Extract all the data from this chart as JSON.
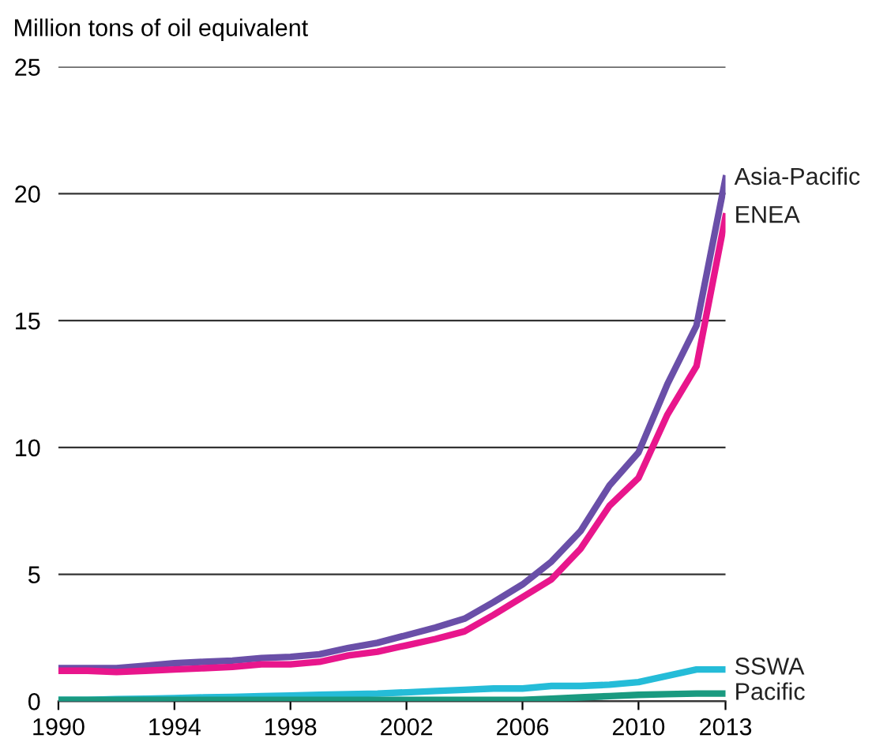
{
  "chart_data": {
    "type": "line",
    "ylabel": "Million tons of oil equivalent",
    "x": [
      1990,
      1991,
      1992,
      1993,
      1994,
      1995,
      1996,
      1997,
      1998,
      1999,
      2000,
      2001,
      2002,
      2003,
      2004,
      2005,
      2006,
      2007,
      2008,
      2009,
      2010,
      2011,
      2012,
      2013
    ],
    "series": [
      {
        "name": "Asia-Pacific",
        "color": "#6a4fa8",
        "values": [
          1.3,
          1.3,
          1.3,
          1.4,
          1.5,
          1.55,
          1.6,
          1.7,
          1.75,
          1.85,
          2.1,
          2.3,
          2.6,
          2.9,
          3.25,
          3.9,
          4.6,
          5.5,
          6.7,
          8.5,
          9.8,
          12.5,
          14.8,
          20.6
        ]
      },
      {
        "name": "ENEA",
        "color": "#e8168c",
        "values": [
          1.2,
          1.2,
          1.15,
          1.2,
          1.25,
          1.3,
          1.35,
          1.45,
          1.45,
          1.55,
          1.8,
          1.95,
          2.2,
          2.45,
          2.75,
          3.4,
          4.1,
          4.8,
          6.0,
          7.7,
          8.8,
          11.3,
          13.2,
          19.1
        ]
      },
      {
        "name": "SSWA",
        "color": "#25bcd8",
        "values": [
          0.05,
          0.05,
          0.08,
          0.1,
          0.12,
          0.15,
          0.17,
          0.2,
          0.22,
          0.25,
          0.28,
          0.3,
          0.35,
          0.4,
          0.45,
          0.5,
          0.5,
          0.6,
          0.6,
          0.65,
          0.75,
          1.0,
          1.25,
          1.25
        ]
      },
      {
        "name": "Pacific",
        "color": "#1a9a80",
        "values": [
          0.05,
          0.05,
          0.05,
          0.05,
          0.05,
          0.05,
          0.05,
          0.05,
          0.05,
          0.05,
          0.05,
          0.05,
          0.05,
          0.05,
          0.05,
          0.05,
          0.05,
          0.1,
          0.15,
          0.2,
          0.25,
          0.28,
          0.3,
          0.3
        ]
      }
    ],
    "xlim": [
      1990,
      2013
    ],
    "xticks": [
      1990,
      1994,
      1998,
      2002,
      2006,
      2010,
      2013
    ],
    "ylim": [
      0,
      25
    ],
    "yticks": [
      0,
      5,
      10,
      15,
      20,
      25
    ],
    "grid": "y",
    "legend": false,
    "marker": "none",
    "line_style": "solid"
  }
}
